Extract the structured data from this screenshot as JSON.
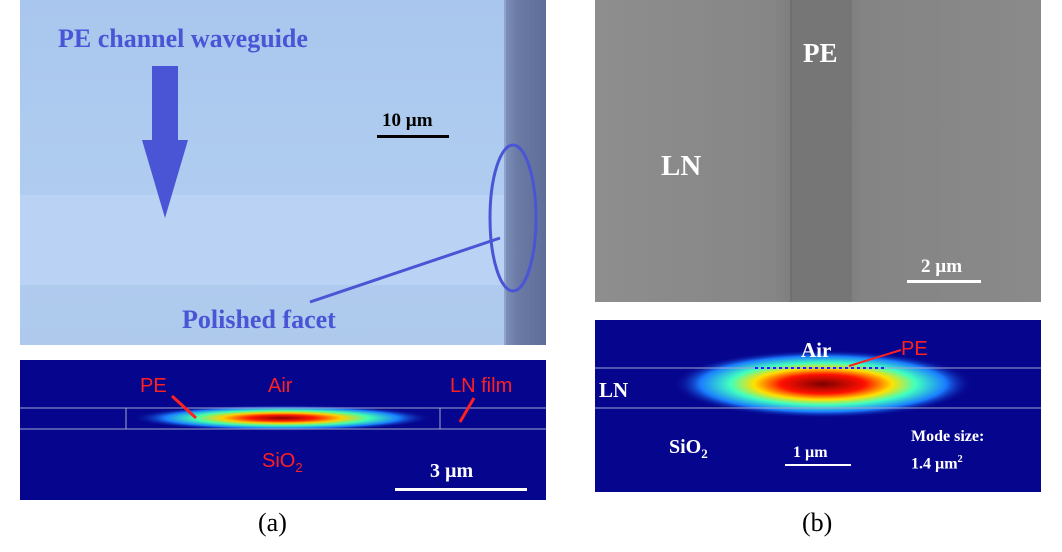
{
  "panel_a": {
    "micrograph": {
      "title": "PE channel waveguide",
      "scale_label": "10 µm",
      "facet_label": "Polished facet"
    },
    "mode": {
      "pe_label": "PE",
      "air_label": "Air",
      "ln_label": "LN film",
      "sio2_label": "SiO",
      "sio2_sub": "2",
      "scale_label": "3 µm"
    },
    "caption": "(a)"
  },
  "panel_b": {
    "sem": {
      "pe_label": "PE",
      "ln_label": "LN",
      "scale_label": "2 µm"
    },
    "mode": {
      "air_label": "Air",
      "pe_label": "PE",
      "ln_label": "LN",
      "sio2_label": "SiO",
      "sio2_sub": "2",
      "scale_label": "1 µm",
      "mode_size_label": "Mode size:",
      "mode_size_value": "1.4 µm",
      "mode_size_sup": "2"
    },
    "caption": "(b)"
  },
  "colors": {
    "label_blue": "#4a55d6",
    "field_background": "#06058e",
    "label_red": "#ff2020"
  }
}
